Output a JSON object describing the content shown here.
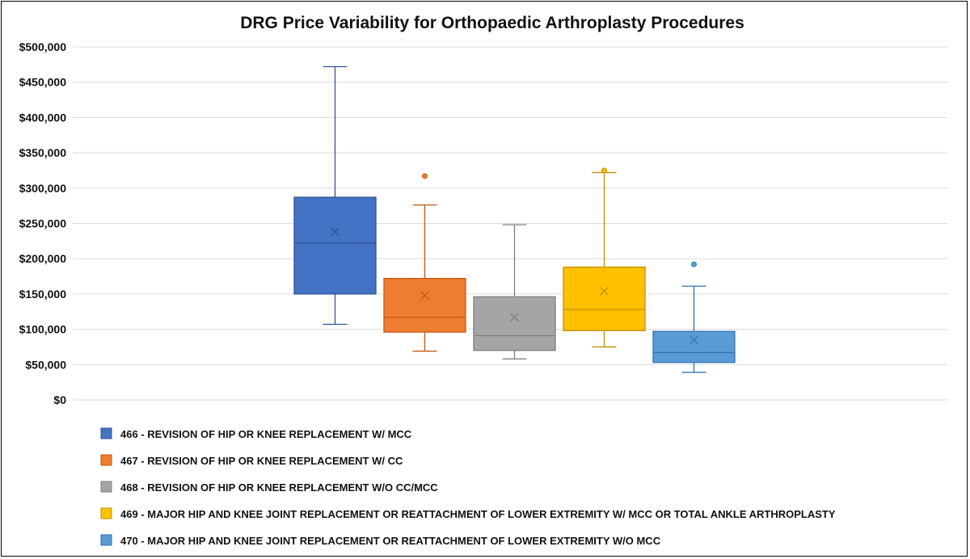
{
  "chart_data": {
    "type": "box",
    "title": "DRG Price Variability for Orthopaedic Arthroplasty Procedures",
    "xlabel": "",
    "ylabel": "",
    "ylim": [
      0,
      500000
    ],
    "yticks": [
      0,
      50000,
      100000,
      150000,
      200000,
      250000,
      300000,
      350000,
      400000,
      450000,
      500000
    ],
    "ytick_labels": [
      "$0",
      "$50,000",
      "$100,000",
      "$150,000",
      "$200,000",
      "$250,000",
      "$300,000",
      "$350,000",
      "$400,000",
      "$450,000",
      "$500,000"
    ],
    "grid": true,
    "legend_position": "bottom",
    "series": [
      {
        "name": "466 - REVISION OF HIP OR KNEE REPLACEMENT W/ MCC",
        "color": "#4472C4",
        "whisker_color": "#2F5597",
        "min": 107000,
        "q1": 150000,
        "median": 222000,
        "q3": 287000,
        "max": 472000,
        "mean": 238000,
        "outliers": []
      },
      {
        "name": "467 - REVISION OF HIP OR KNEE REPLACEMENT W/ CC",
        "color": "#ED7D31",
        "whisker_color": "#C55A11",
        "min": 69000,
        "q1": 96000,
        "median": 117000,
        "q3": 172000,
        "max": 276000,
        "mean": 148000,
        "outliers": [
          317000
        ]
      },
      {
        "name": "468 - REVISION OF HIP OR KNEE REPLACEMENT W/O CC/MCC",
        "color": "#A5A5A5",
        "whisker_color": "#7F7F7F",
        "min": 58000,
        "q1": 70000,
        "median": 91000,
        "q3": 146000,
        "max": 248000,
        "mean": 117000,
        "outliers": []
      },
      {
        "name": "469 - MAJOR HIP AND KNEE JOINT REPLACEMENT OR REATTACHMENT OF LOWER EXTREMITY W/ MCC OR TOTAL ANKLE ARTHROPLASTY",
        "color": "#FFC000",
        "whisker_color": "#BF9000",
        "min": 75000,
        "q1": 98000,
        "median": 128000,
        "q3": 188000,
        "max": 322000,
        "mean": 154000,
        "outliers": [
          325000
        ]
      },
      {
        "name": "470 - MAJOR HIP AND KNEE JOINT REPLACEMENT OR REATTACHMENT OF LOWER EXTREMITY W/O MCC",
        "color": "#5B9BD5",
        "whisker_color": "#2E75B6",
        "min": 39000,
        "q1": 53000,
        "median": 67000,
        "q3": 97000,
        "max": 161000,
        "mean": 85000,
        "outliers": [
          192000
        ]
      }
    ]
  }
}
